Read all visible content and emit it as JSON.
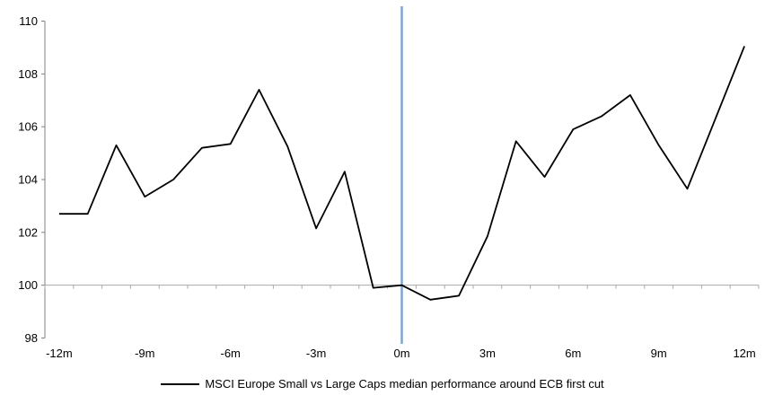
{
  "chart_data": {
    "type": "line",
    "title": "",
    "legend": "MSCI Europe Small vs Large Caps median performance around ECB first cut",
    "legend_position": "bottom-center",
    "categories": [
      "-12m",
      "-11m",
      "-10m",
      "-9m",
      "-8m",
      "-7m",
      "-6m",
      "-5m",
      "-4m",
      "-3m",
      "-2m",
      "-1m",
      "0m",
      "1m",
      "2m",
      "3m",
      "4m",
      "5m",
      "6m",
      "7m",
      "8m",
      "9m",
      "10m",
      "11m",
      "12m"
    ],
    "values": [
      102.7,
      102.7,
      105.3,
      103.35,
      104.0,
      105.2,
      105.35,
      107.4,
      105.25,
      102.15,
      104.3,
      99.9,
      100.0,
      99.45,
      99.6,
      101.85,
      105.45,
      104.1,
      105.9,
      106.4,
      107.2,
      105.3,
      103.65,
      106.35,
      109.05
    ],
    "xlabel": "",
    "ylabel": "",
    "ylim": [
      98,
      110
    ],
    "ytick_step": 2,
    "ytick_labels": [
      "98",
      "100",
      "102",
      "104",
      "106",
      "108",
      "110"
    ],
    "x_tick_labels": [
      "-12m",
      "-9m",
      "-6m",
      "-3m",
      "0m",
      "3m",
      "6m",
      "9m",
      "12m"
    ],
    "grid": "off",
    "baseline_value": 100,
    "event_line_category": "0m",
    "colors": {
      "series": "#000000",
      "event_line": "#7EA6D2",
      "baseline": "#A9A9A9",
      "axis": "#808080",
      "text": "#000000"
    }
  }
}
